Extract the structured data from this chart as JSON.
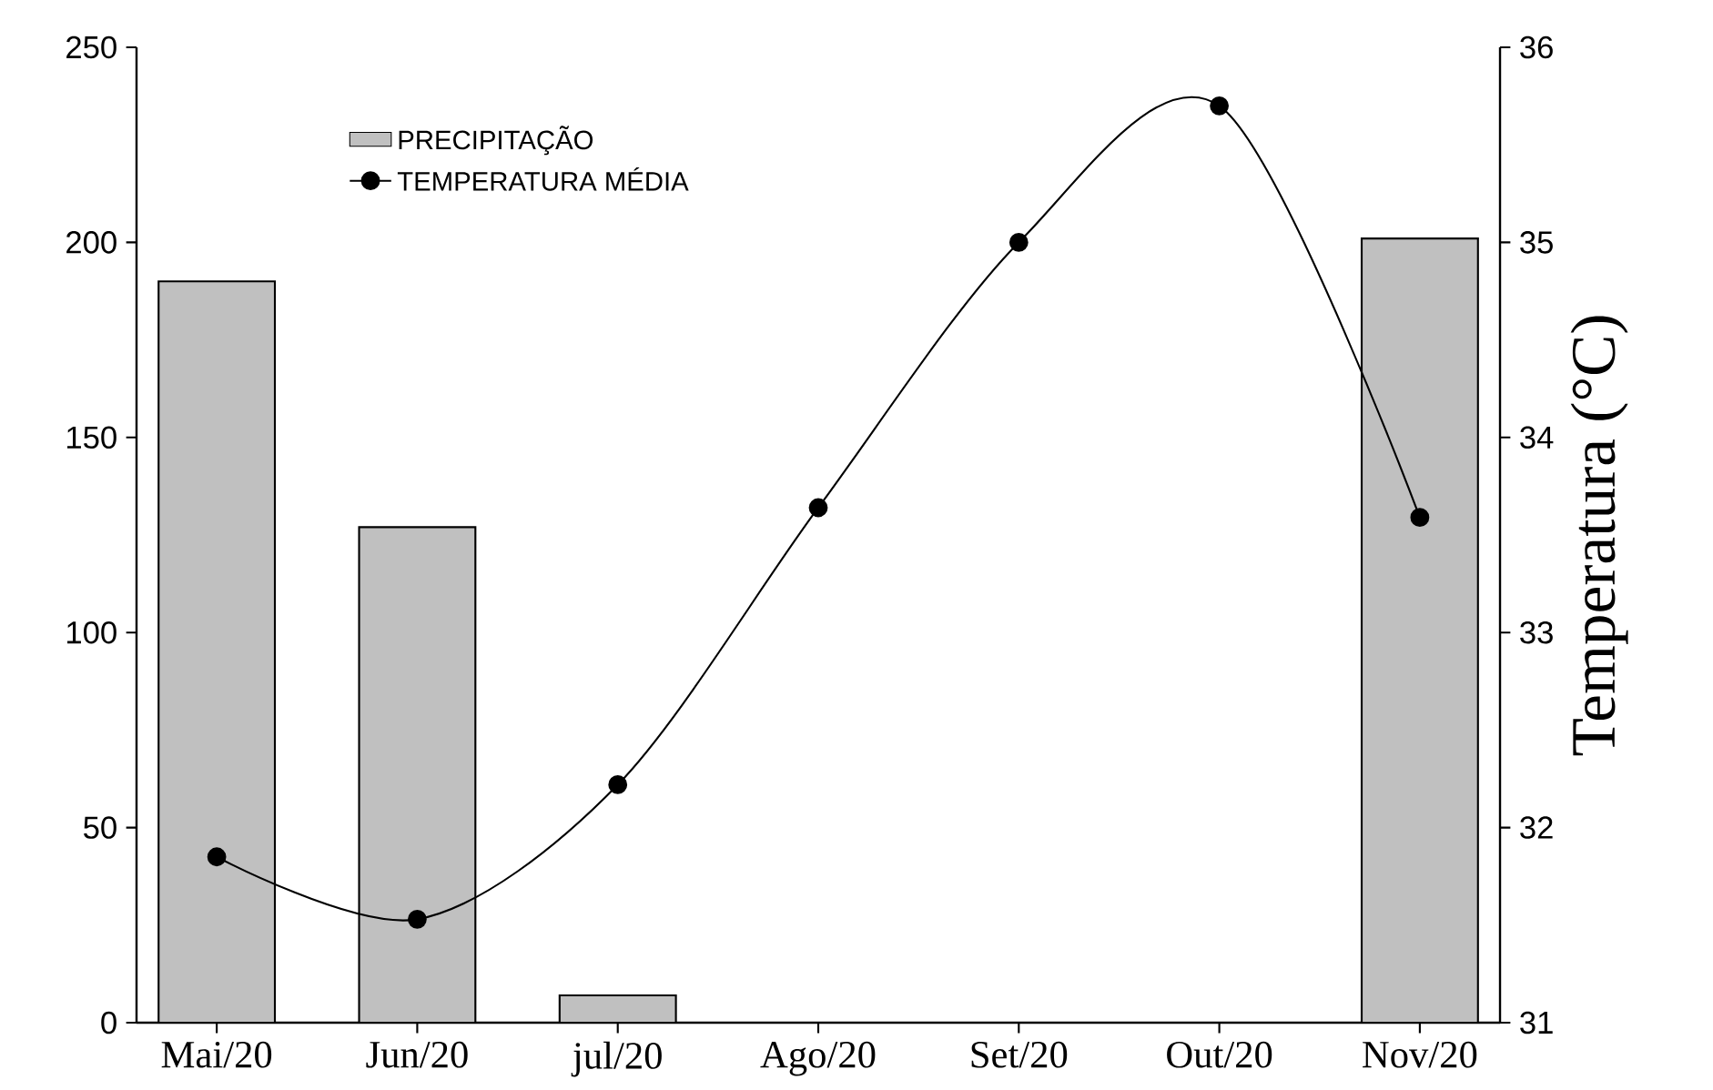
{
  "chart_data": {
    "type": "bar",
    "categories": [
      "Mai/20",
      "Jun/20",
      "jul/20",
      "Ago/20",
      "Set/20",
      "Out/20",
      "Nov/20"
    ],
    "series": [
      {
        "name": "PRECIPITAÇÃO",
        "color": "#c0c0c0",
        "values": [
          190,
          127,
          7,
          null,
          null,
          null,
          201
        ]
      },
      {
        "name": "TEMPERATURA MÉDIA",
        "type": "line",
        "axis": "y2",
        "color": "#000000",
        "marker": "circle",
        "values": [
          31.85,
          31.53,
          32.22,
          33.64,
          35.0,
          35.7,
          33.59
        ]
      }
    ],
    "ylim": [
      0,
      250
    ],
    "yticks": [
      0,
      50,
      100,
      150,
      200,
      250
    ],
    "y2lim": [
      31,
      36
    ],
    "y2ticks": [
      31,
      32,
      33,
      34,
      35,
      36
    ],
    "y2label": "Temperatura (°C)",
    "legend": "top left",
    "grid": false
  }
}
